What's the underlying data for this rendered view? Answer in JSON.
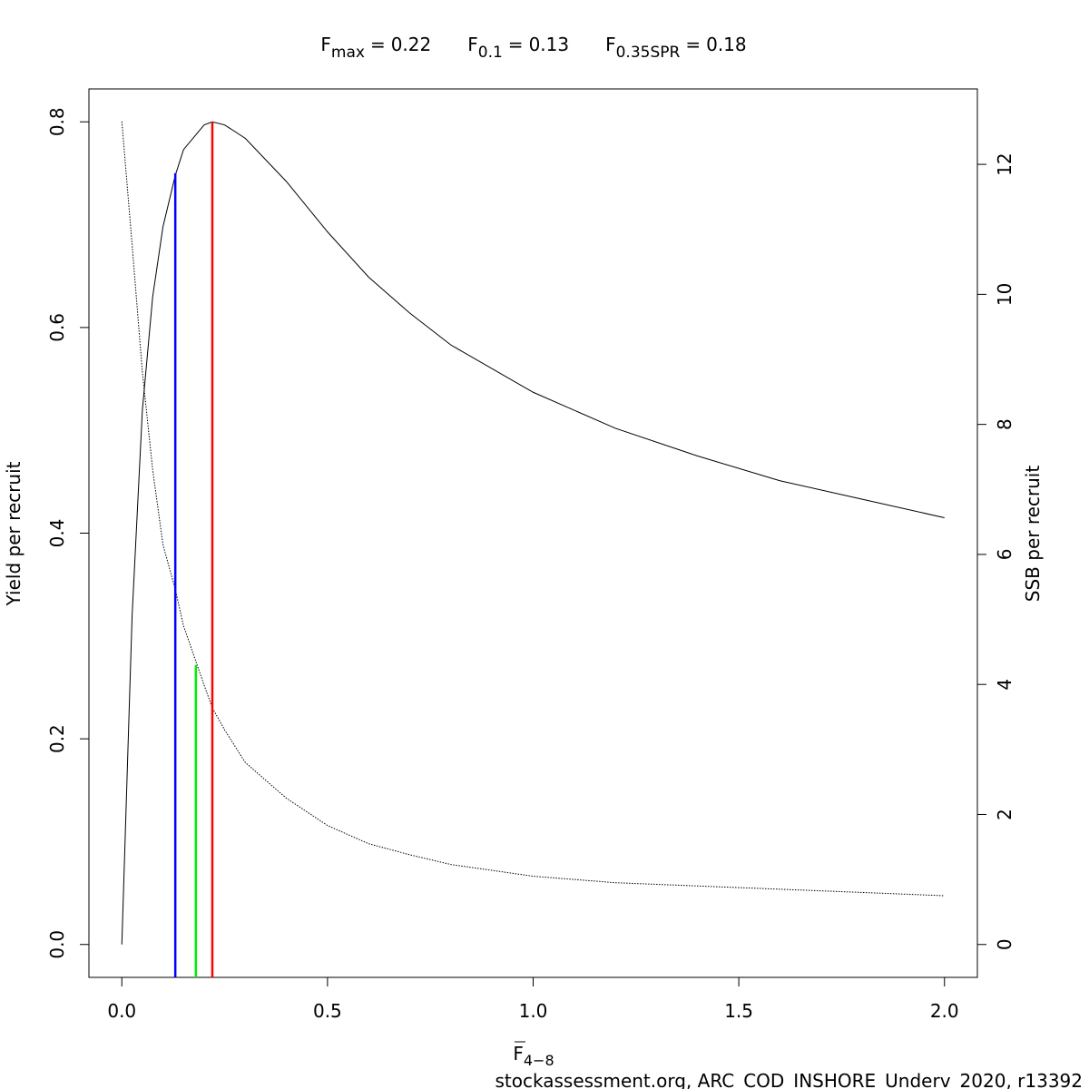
{
  "chart_data": {
    "type": "line",
    "title": [
      {
        "symbol": "F",
        "subscript": "max",
        "relation": "=",
        "value": 0.22
      },
      {
        "symbol": "F",
        "subscript": "0.1",
        "relation": "=",
        "value": 0.13
      },
      {
        "symbol": "F",
        "subscript": "0.35SPR",
        "relation": "=",
        "value": 0.18
      }
    ],
    "x_label": {
      "symbol": "F",
      "subscript": "4−8"
    },
    "y_label": "Yield per recruit",
    "y2_label": "SSB per recruit",
    "footer": "stockassessment.org, ARC_COD_INSHORE_Underv_2020, r13392",
    "x": [
      0,
      0.025,
      0.05,
      0.075,
      0.1,
      0.13,
      0.15,
      0.2,
      0.22,
      0.25,
      0.3,
      0.4,
      0.5,
      0.6,
      0.7,
      0.8,
      1.0,
      1.2,
      1.4,
      1.6,
      1.8,
      2.0
    ],
    "series": [
      {
        "name": "Yield per recruit",
        "color": "#000000",
        "dash": "solid",
        "values": [
          0,
          0.32,
          0.52,
          0.63,
          0.698,
          0.748,
          0.773,
          0.797,
          0.8,
          0.797,
          0.784,
          0.742,
          0.693,
          0.649,
          0.614,
          0.583,
          0.537,
          0.502,
          0.475,
          0.451,
          0.433,
          0.415
        ]
      },
      {
        "name": "SSB per recruit",
        "color": "#000000",
        "dash": "dotted",
        "axis": "y2",
        "values": [
          12.66,
          10.76,
          8.8,
          7.3,
          6.15,
          5.46,
          4.9,
          3.99,
          3.64,
          3.3,
          2.8,
          2.25,
          1.83,
          1.55,
          1.38,
          1.23,
          1.05,
          0.95,
          0.9,
          0.85,
          0.8,
          0.75
        ]
      }
    ],
    "reference_lines": [
      {
        "x": 0.13,
        "top": 0.75,
        "color": "#0000ff"
      },
      {
        "x": 0.18,
        "top": 4.3,
        "axis": "y2",
        "color": "#00ee00"
      },
      {
        "x": 0.22,
        "top": 0.8,
        "color": "#ff0000"
      }
    ],
    "xlim": [
      -0.08,
      2.08
    ],
    "xticks": [
      {
        "value": 0,
        "label": "0.0"
      },
      0.5,
      {
        "value": 1,
        "label": "1.0"
      },
      1.5,
      {
        "value": 2,
        "label": "2.0"
      }
    ],
    "ylim": [
      -0.032,
      0.832
    ],
    "yticks": [
      {
        "value": 0,
        "label": "0.0"
      },
      0.2,
      0.4,
      0.6,
      0.8
    ],
    "y2lim": [
      -0.506,
      13.16
    ],
    "y2ticks": [
      0,
      2,
      4,
      6,
      8,
      10,
      12
    ]
  }
}
